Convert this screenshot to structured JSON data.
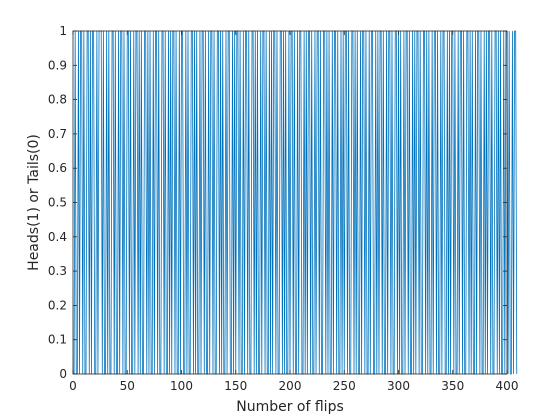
{
  "chart_data": {
    "type": "line",
    "title": "",
    "xlabel": "Number of flips",
    "ylabel": "Heads(1) or Tails(0)",
    "xlim": [
      0,
      400
    ],
    "ylim": [
      0,
      1
    ],
    "x_ticks": [
      0,
      50,
      100,
      150,
      200,
      250,
      300,
      350,
      400
    ],
    "y_ticks": [
      0,
      0.1,
      0.2,
      0.3,
      0.4,
      0.5,
      0.6,
      0.7,
      0.8,
      0.9,
      1
    ],
    "x_tick_labels": [
      "0",
      "50",
      "100",
      "150",
      "200",
      "250",
      "300",
      "350",
      "400"
    ],
    "y_tick_labels": [
      "0",
      "0.1",
      "0.2",
      "0.3",
      "0.4",
      "0.5",
      "0.6",
      "0.7",
      "0.8",
      "0.9",
      "1"
    ],
    "grid": false,
    "box": true,
    "series": [
      {
        "color": "#0072bd",
        "x_start": 1,
        "y": [
          0,
          1,
          0,
          0,
          1,
          0,
          1,
          1,
          0,
          1,
          0,
          0,
          1,
          1,
          0,
          1,
          0,
          1,
          1,
          0,
          0,
          1,
          0,
          1,
          1,
          1,
          0,
          1,
          0,
          0,
          1,
          0,
          1,
          0,
          0,
          1,
          1,
          0,
          1,
          0,
          0,
          1,
          0,
          1,
          1,
          0,
          1,
          0,
          0,
          1,
          1,
          0,
          1,
          0,
          0,
          1,
          0,
          1,
          1,
          0,
          1,
          0,
          1,
          0,
          0,
          1,
          1,
          0,
          1,
          0,
          1,
          0,
          0,
          1,
          0,
          1,
          1,
          0,
          1,
          0,
          0,
          1,
          1,
          0,
          1,
          0,
          0,
          1,
          0,
          1,
          0,
          1,
          1,
          0,
          1,
          0,
          0,
          1,
          0,
          1,
          1,
          0,
          0,
          1,
          0,
          1,
          0,
          0,
          1,
          1,
          0,
          1,
          0,
          1,
          0,
          0,
          1,
          0,
          1,
          1,
          0,
          1,
          0,
          0,
          1,
          0,
          1,
          1,
          0,
          1,
          0,
          0,
          1,
          1,
          0,
          1,
          0,
          1,
          0,
          0,
          1,
          0,
          1,
          1,
          0,
          0,
          1,
          0,
          1,
          0,
          1,
          1,
          0,
          1,
          0,
          0,
          1,
          0,
          1,
          1,
          0,
          1,
          0,
          0,
          1,
          1,
          0,
          1,
          0,
          1,
          0,
          0,
          1,
          0,
          1,
          1,
          0,
          1,
          0,
          0,
          1,
          0,
          1,
          0,
          1,
          1,
          0,
          1,
          0,
          0,
          1,
          1,
          0,
          1,
          0,
          1,
          0,
          0,
          1,
          0,
          1,
          1,
          0,
          1,
          0,
          0,
          1,
          0,
          1,
          1,
          0,
          0,
          1,
          0,
          1,
          0,
          1,
          1,
          0,
          1,
          0,
          0,
          1,
          0,
          1,
          1,
          0,
          1,
          0,
          0,
          1,
          1,
          0,
          1,
          0,
          1,
          0,
          0,
          1,
          0,
          1,
          1,
          0,
          1,
          0,
          0,
          1,
          0,
          1,
          0,
          1,
          1,
          0,
          1,
          0,
          0,
          1,
          1,
          0,
          1,
          0,
          1,
          0,
          0,
          1,
          0,
          1,
          1,
          0,
          1,
          0,
          0,
          1,
          0,
          1,
          1,
          0,
          0,
          1,
          0,
          1,
          0,
          1,
          1,
          0,
          1,
          0,
          0,
          1,
          0,
          1,
          1,
          0,
          1,
          0,
          0,
          1,
          1,
          0,
          1,
          0,
          1,
          0,
          0,
          1,
          0,
          1,
          1,
          0,
          1,
          0,
          0,
          1,
          0,
          1,
          0,
          1,
          1,
          0,
          1,
          0,
          0,
          1,
          1,
          0,
          1,
          0,
          1,
          0,
          0,
          1,
          0,
          1,
          1,
          0,
          1,
          0,
          0,
          1,
          0,
          1,
          1,
          0,
          0,
          1,
          0,
          1,
          0,
          1,
          1,
          0,
          1,
          0,
          0,
          1,
          0,
          1,
          1,
          0,
          1,
          0,
          0,
          1,
          1,
          0,
          1,
          0,
          1,
          0,
          0,
          1,
          0,
          1,
          1,
          0,
          1,
          0,
          0,
          1,
          0,
          1,
          0,
          1,
          1,
          0,
          1,
          0,
          0,
          1,
          1,
          0,
          1,
          0,
          1,
          0,
          0,
          1,
          0,
          1,
          1,
          0,
          1,
          0,
          0,
          1,
          0,
          1,
          1,
          0
        ]
      }
    ]
  }
}
